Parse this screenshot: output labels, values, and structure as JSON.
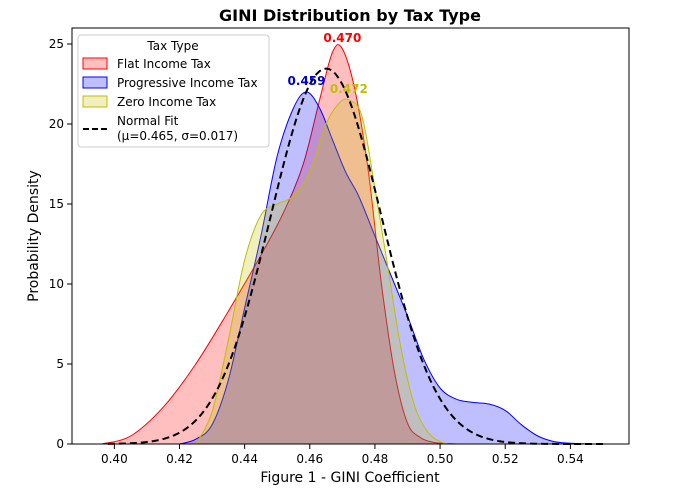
{
  "chart_data": {
    "type": "area",
    "title": "GINI Distribution by Tax Type",
    "xlabel": "Figure 1 - GINI Coefficient",
    "ylabel": "Probability Density",
    "xlim": [
      0.387,
      0.558
    ],
    "ylim": [
      0,
      26
    ],
    "x_ticks": [
      0.4,
      0.42,
      0.44,
      0.46,
      0.48,
      0.5,
      0.52,
      0.54
    ],
    "x_tick_labels": [
      "0.40",
      "0.42",
      "0.44",
      "0.46",
      "0.48",
      "0.50",
      "0.52",
      "0.54"
    ],
    "y_ticks": [
      0,
      5,
      10,
      15,
      20,
      25
    ],
    "y_tick_labels": [
      "0",
      "5",
      "10",
      "15",
      "20",
      "25"
    ],
    "grid": false,
    "legend": {
      "title": "Tax Type",
      "position": "top-left",
      "entries": [
        "Flat Income Tax",
        "Progressive Income Tax",
        "Zero Income Tax",
        "Normal Fit",
        "(μ=0.465, σ=0.017)"
      ]
    },
    "series": [
      {
        "name": "Flat Income Tax",
        "color": "#ff0000",
        "fill": "#ff0000",
        "x": [
          0.396,
          0.405,
          0.415,
          0.425,
          0.435,
          0.445,
          0.452,
          0.458,
          0.463,
          0.467,
          0.47,
          0.474,
          0.478,
          0.482,
          0.486,
          0.49,
          0.494,
          0.498,
          0.502,
          0.505
        ],
        "y": [
          0.0,
          0.5,
          2.3,
          5.0,
          8.3,
          11.8,
          14.5,
          17.5,
          21.5,
          24.5,
          24.7,
          22.0,
          17.0,
          10.0,
          4.5,
          1.3,
          0.4,
          0.1,
          0.03,
          0.0
        ]
      },
      {
        "name": "Progressive Income Tax",
        "color": "#0000ff",
        "fill": "#0000ff",
        "x": [
          0.42,
          0.425,
          0.43,
          0.435,
          0.44,
          0.445,
          0.45,
          0.455,
          0.459,
          0.463,
          0.467,
          0.471,
          0.475,
          0.48,
          0.485,
          0.49,
          0.495,
          0.5,
          0.505,
          0.51,
          0.515,
          0.52,
          0.525,
          0.53,
          0.535,
          0.54,
          0.545,
          0.55
        ],
        "y": [
          0.0,
          0.3,
          1.2,
          4.0,
          8.5,
          13.0,
          18.0,
          21.0,
          22.0,
          21.0,
          19.0,
          17.0,
          15.5,
          13.0,
          10.5,
          8.0,
          5.3,
          3.5,
          2.8,
          2.6,
          2.5,
          2.1,
          1.2,
          0.5,
          0.15,
          0.05,
          0.01,
          0.0
        ]
      },
      {
        "name": "Zero Income Tax",
        "color": "#bfbf00",
        "fill": "#bfbf00",
        "x": [
          0.425,
          0.43,
          0.435,
          0.44,
          0.445,
          0.45,
          0.455,
          0.46,
          0.465,
          0.469,
          0.472,
          0.476,
          0.48,
          0.484,
          0.488,
          0.492,
          0.496,
          0.5,
          0.503
        ],
        "y": [
          0.0,
          2.0,
          6.5,
          11.5,
          14.3,
          15.0,
          15.5,
          17.0,
          20.0,
          21.3,
          21.5,
          20.5,
          16.0,
          11.0,
          6.0,
          2.5,
          0.8,
          0.15,
          0.0
        ]
      },
      {
        "name": "Normal Fit",
        "color": "#000000",
        "style": "dashed",
        "mu": 0.465,
        "sigma": 0.017
      }
    ],
    "peak_labels": [
      {
        "text": "0.470",
        "x": 0.47,
        "y": 24.7,
        "color": "#ff0000"
      },
      {
        "text": "0.459",
        "x": 0.459,
        "y": 22.0,
        "color": "#0000cc"
      },
      {
        "text": "0.472",
        "x": 0.472,
        "y": 21.5,
        "color": "#bfbf00"
      }
    ]
  }
}
